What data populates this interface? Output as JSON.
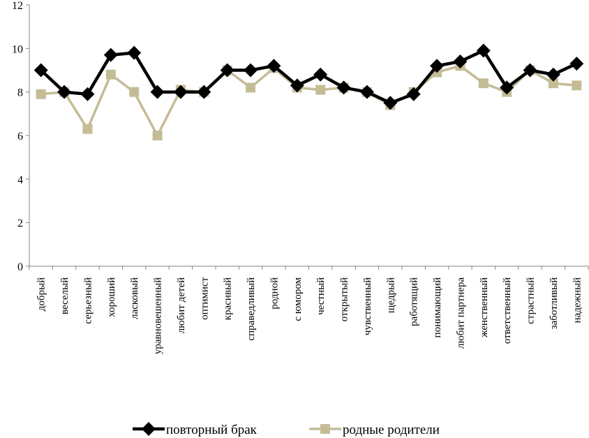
{
  "chart_data": {
    "type": "line",
    "title": "",
    "xlabel": "",
    "ylabel": "",
    "ylim": [
      0,
      12
    ],
    "yticks": [
      0,
      2,
      4,
      6,
      8,
      10,
      12
    ],
    "grid": false,
    "legend_position": "bottom",
    "categories": [
      "добрый",
      "веселый",
      "серьезный",
      "хороший",
      "ласковый",
      "уравновешенный",
      "любит детей",
      "оптимист",
      "красивый",
      "справедливый",
      "родной",
      "с юмором",
      "честный",
      "открытый",
      "чувственный",
      "щедрый",
      "работящий",
      "понимающий",
      "любит партнера",
      "женственный",
      "ответственный",
      "страстный",
      "заботливый",
      "надежный"
    ],
    "series": [
      {
        "name": "повторный брак",
        "color": "#000000",
        "marker": "diamond",
        "values": [
          9.0,
          8.0,
          7.9,
          9.7,
          9.8,
          8.0,
          8.0,
          8.0,
          9.0,
          9.0,
          9.2,
          8.3,
          8.8,
          8.2,
          8.0,
          7.5,
          7.9,
          9.2,
          9.4,
          9.9,
          8.2,
          9.0,
          8.8,
          9.3
        ]
      },
      {
        "name": "родные родители",
        "color": "#c4bc96",
        "marker": "square",
        "values": [
          7.9,
          8.0,
          6.3,
          8.8,
          8.0,
          6.0,
          8.1,
          8.0,
          9.0,
          8.2,
          9.1,
          8.2,
          8.1,
          8.2,
          8.0,
          7.4,
          8.0,
          8.9,
          9.2,
          8.4,
          8.0,
          9.0,
          8.4,
          8.3
        ]
      }
    ]
  }
}
